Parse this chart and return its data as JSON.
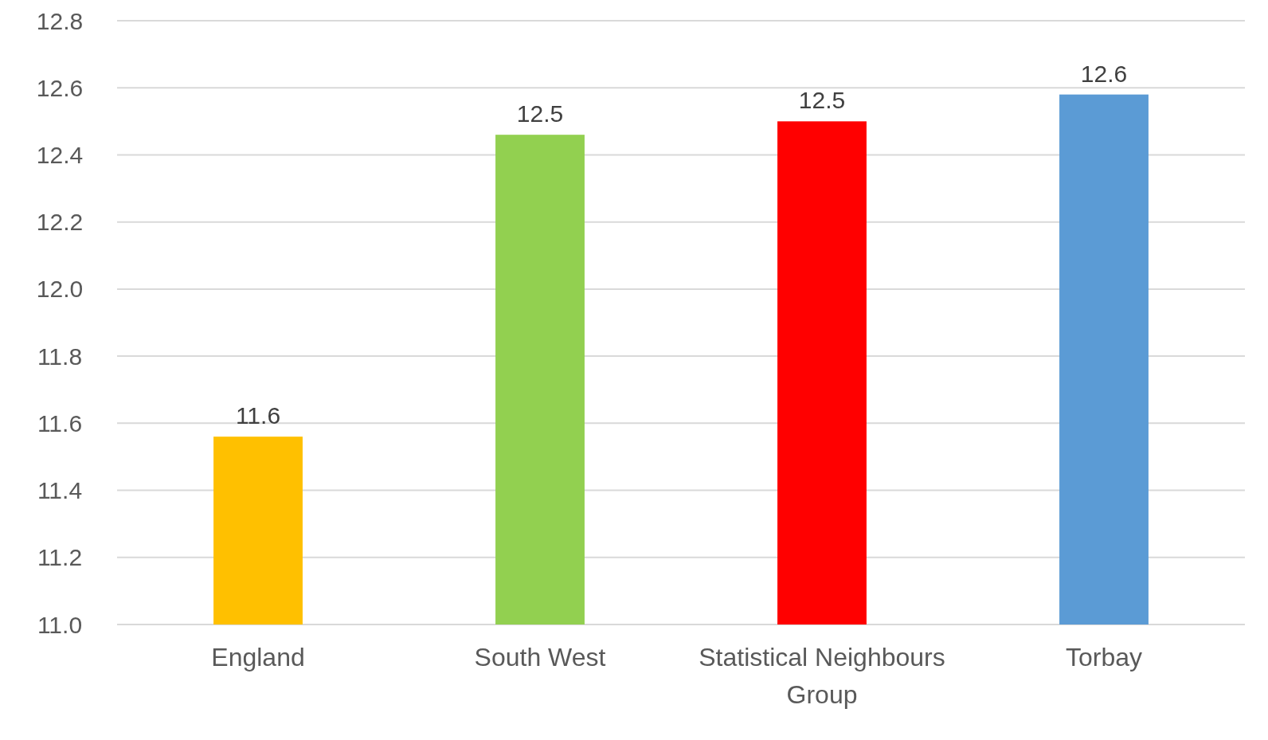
{
  "chart_data": {
    "type": "bar",
    "categories": [
      "England",
      "South West",
      "Statistical Neighbours Group",
      "Torbay"
    ],
    "values": [
      11.56,
      12.46,
      12.5,
      12.58
    ],
    "value_labels": [
      "11.6",
      "12.5",
      "12.5",
      "12.6"
    ],
    "colors": [
      "#ffc000",
      "#92d050",
      "#ff0000",
      "#5b9bd5"
    ],
    "ylim": [
      11.0,
      12.8
    ],
    "yticks": [
      {
        "value": 11.0,
        "label": "11.0"
      },
      {
        "value": 11.2,
        "label": "11.2"
      },
      {
        "value": 11.4,
        "label": "11.4"
      },
      {
        "value": 11.6,
        "label": "11.6"
      },
      {
        "value": 11.8,
        "label": "11.8"
      },
      {
        "value": 12.0,
        "label": "12.0"
      },
      {
        "value": 12.2,
        "label": "12.2"
      },
      {
        "value": 12.4,
        "label": "12.4"
      },
      {
        "value": 12.6,
        "label": "12.6"
      },
      {
        "value": 12.8,
        "label": "12.8"
      }
    ],
    "grid": "y"
  }
}
